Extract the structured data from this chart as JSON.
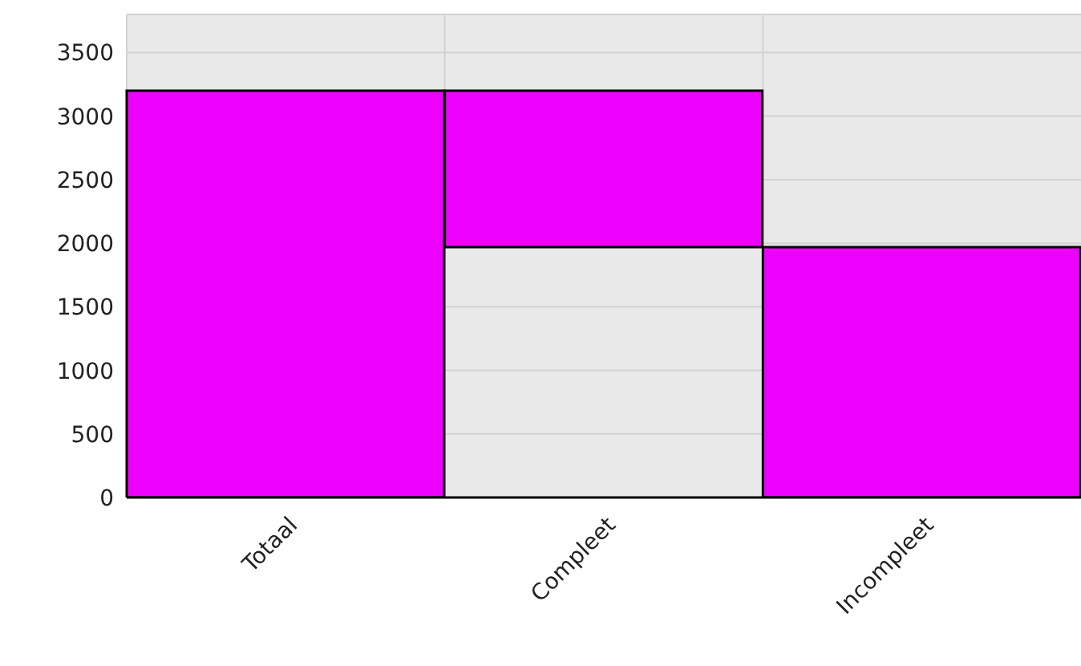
{
  "chart_data": {
    "type": "bar",
    "categories": [
      "Totaal",
      "Compleet",
      "Incompleet"
    ],
    "values": [
      3200,
      1230,
      1970
    ],
    "base": [
      0,
      1970,
      0
    ],
    "color": "#ee00ff",
    "ylim": [
      0,
      3800
    ],
    "yticks": [
      0,
      500,
      1000,
      1500,
      2000,
      2500,
      3000,
      3500
    ],
    "grid": true
  }
}
